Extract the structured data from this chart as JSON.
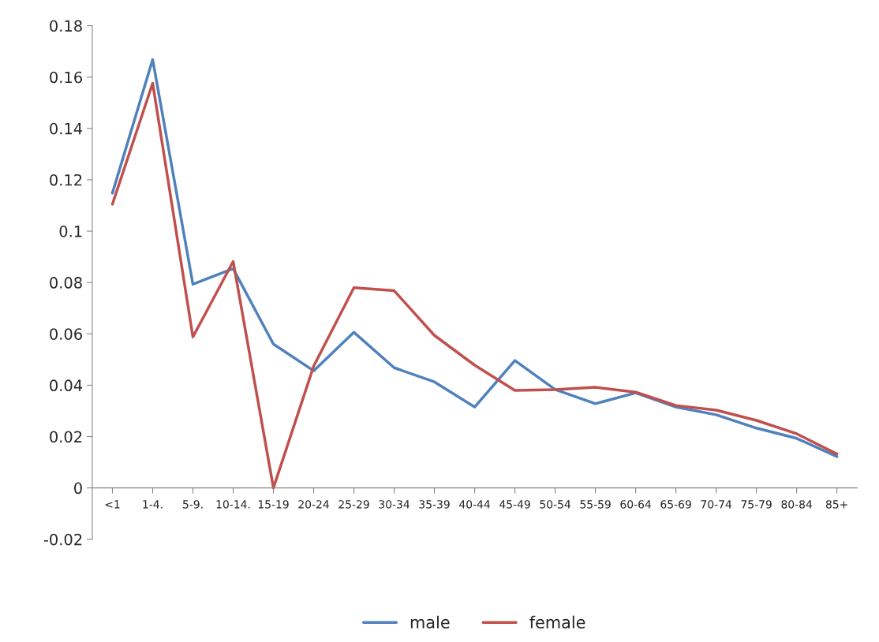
{
  "chart_data": {
    "type": "line",
    "categories": [
      "<1",
      "1-4.",
      "5-9.",
      "10-14.",
      "15-19",
      "20-24",
      "25-29",
      "30-34",
      "35-39",
      "40-44",
      "45-49",
      "50-54",
      "55-59",
      "60-64",
      "65-69",
      "70-74",
      "75-79",
      "80-84",
      "85+"
    ],
    "series": [
      {
        "name": "male",
        "color": "#4f81bd",
        "values": [
          0.1148,
          0.1668,
          0.0793,
          0.0854,
          0.056,
          0.0456,
          0.0606,
          0.0468,
          0.0413,
          0.0315,
          0.0496,
          0.0383,
          0.0328,
          0.037,
          0.0315,
          0.0285,
          0.0233,
          0.0193,
          0.0122
        ]
      },
      {
        "name": "female",
        "color": "#c0504d",
        "values": [
          0.1105,
          0.1576,
          0.0588,
          0.0882,
          0.0,
          0.0474,
          0.078,
          0.0768,
          0.0594,
          0.0478,
          0.038,
          0.0383,
          0.0392,
          0.0373,
          0.0321,
          0.0303,
          0.0263,
          0.0211,
          0.0132
        ]
      }
    ],
    "ylim": [
      -0.02,
      0.18
    ],
    "yticks": [
      -0.02,
      0,
      0.02,
      0.04,
      0.06,
      0.08,
      0.1,
      0.12,
      0.14,
      0.16,
      0.18
    ],
    "grid": false,
    "legend": "bottom",
    "marker": "none",
    "line_style": "solid"
  }
}
